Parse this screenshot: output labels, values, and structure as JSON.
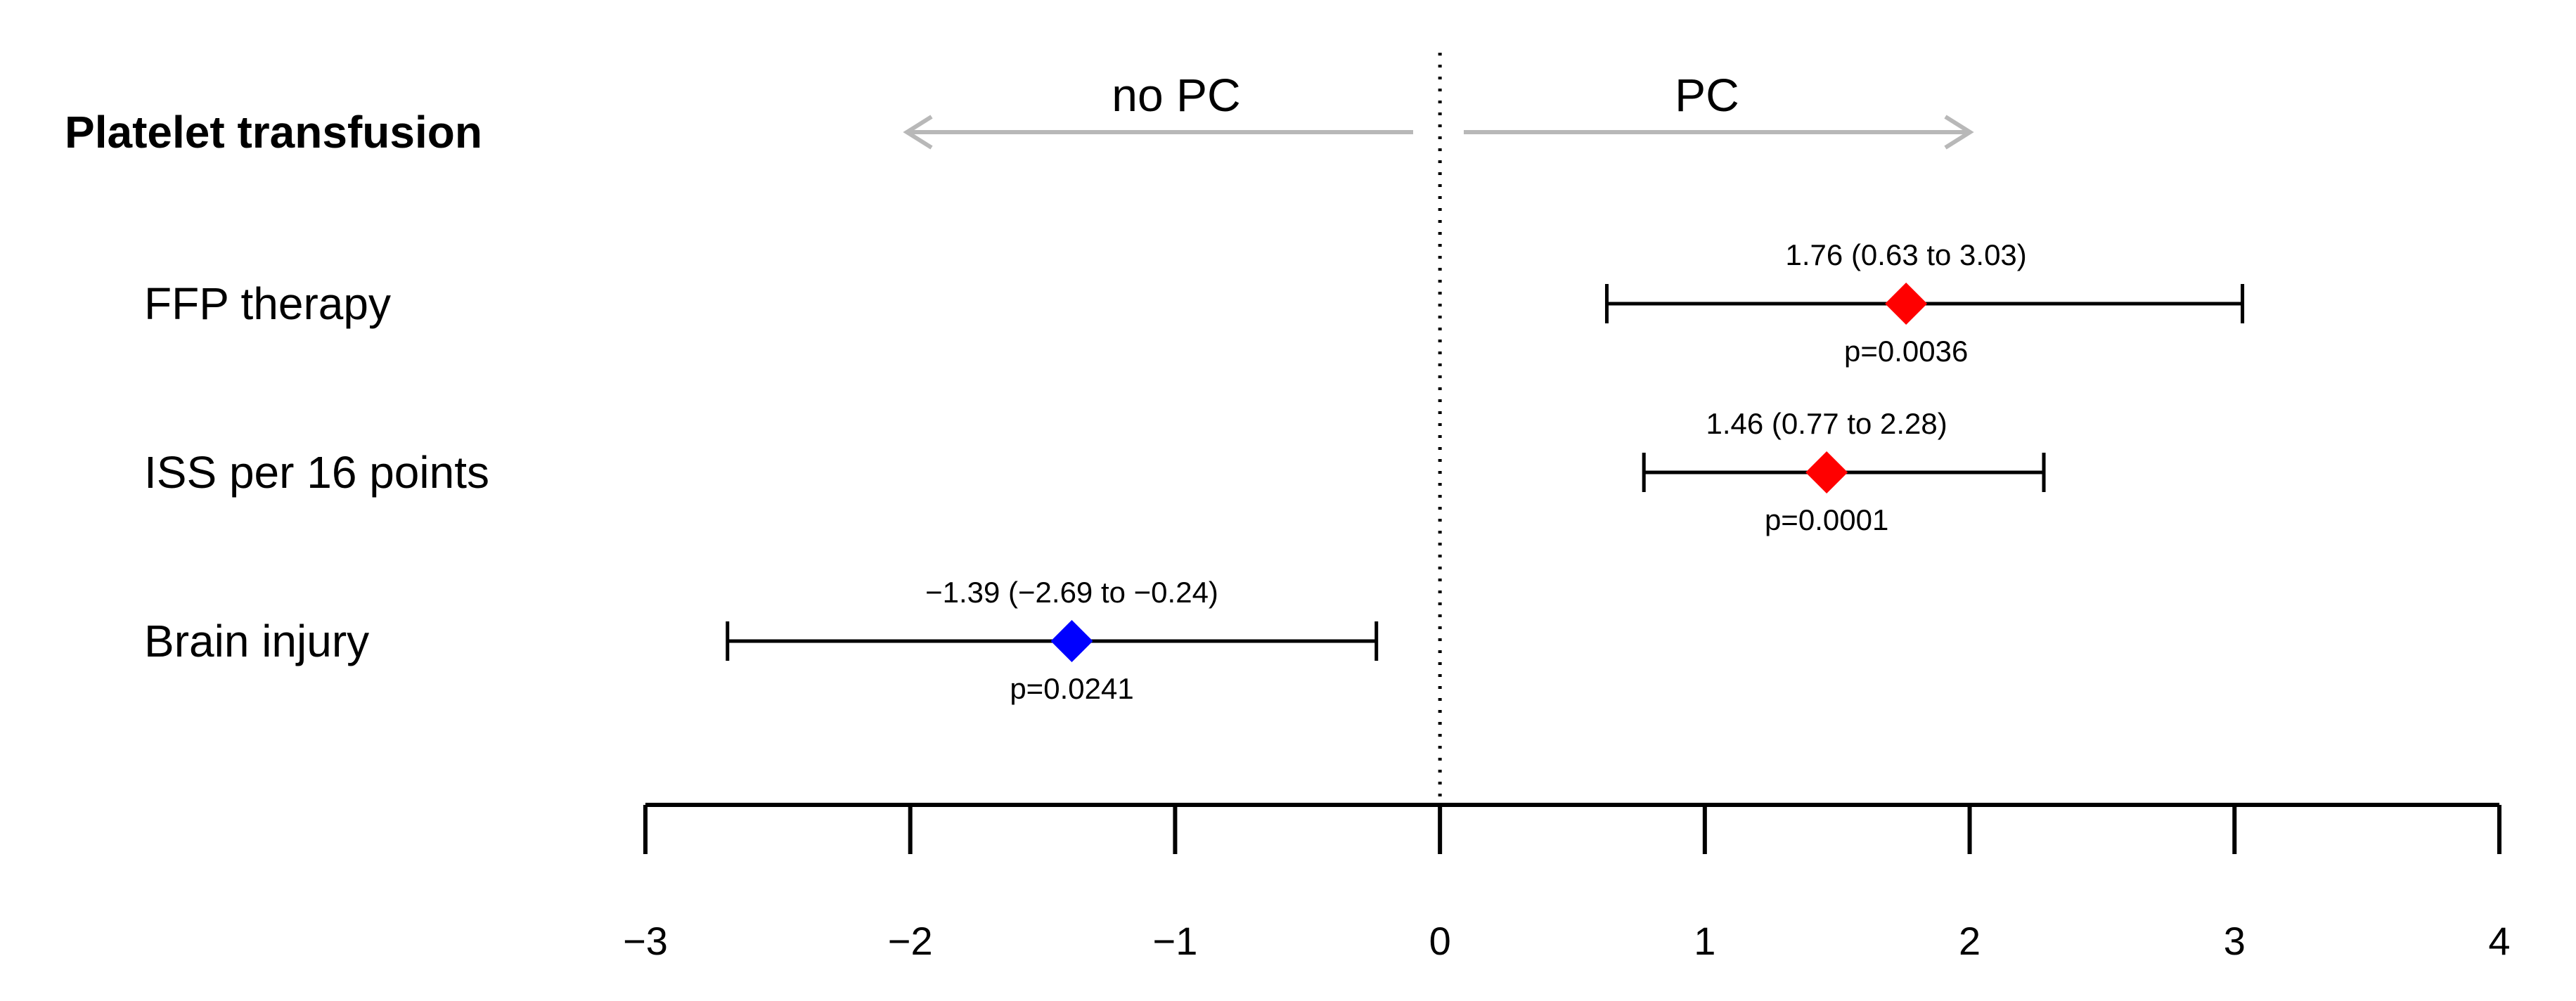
{
  "title": "Platelet transfusion",
  "direction": {
    "left": {
      "label": "no PC",
      "color": "#1f1fd6"
    },
    "right": {
      "label": "PC",
      "color": "#e01818"
    },
    "arrow_color": "#b8b8b8"
  },
  "chart_data": {
    "type": "forest",
    "title": "Platelet transfusion",
    "xlim": [
      -3,
      4
    ],
    "x_ticks": [
      -3,
      -2,
      -1,
      0,
      1,
      2,
      3,
      4
    ],
    "x_tick_labels": [
      "−3",
      "−2",
      "−1",
      "0",
      "1",
      "2",
      "3",
      "4"
    ],
    "reference_line": 0,
    "rows": [
      {
        "label": "FFP therapy",
        "estimate": 1.76,
        "ci_low": 0.63,
        "ci_high": 3.03,
        "ci_text": "1.76 (0.63 to 3.03)",
        "p_text": "p=0.0036",
        "color": "#ff0000"
      },
      {
        "label": "ISS per 16 points",
        "estimate": 1.46,
        "ci_low": 0.77,
        "ci_high": 2.28,
        "ci_text": "1.46 (0.77 to 2.28)",
        "p_text": "p=0.0001",
        "color": "#ff0000"
      },
      {
        "label": "Brain injury",
        "estimate": -1.39,
        "ci_low": -2.69,
        "ci_high": -0.24,
        "ci_text": "−1.39 (−2.69 to −0.24)",
        "p_text": "p=0.0241",
        "color": "#0000ff"
      }
    ]
  }
}
